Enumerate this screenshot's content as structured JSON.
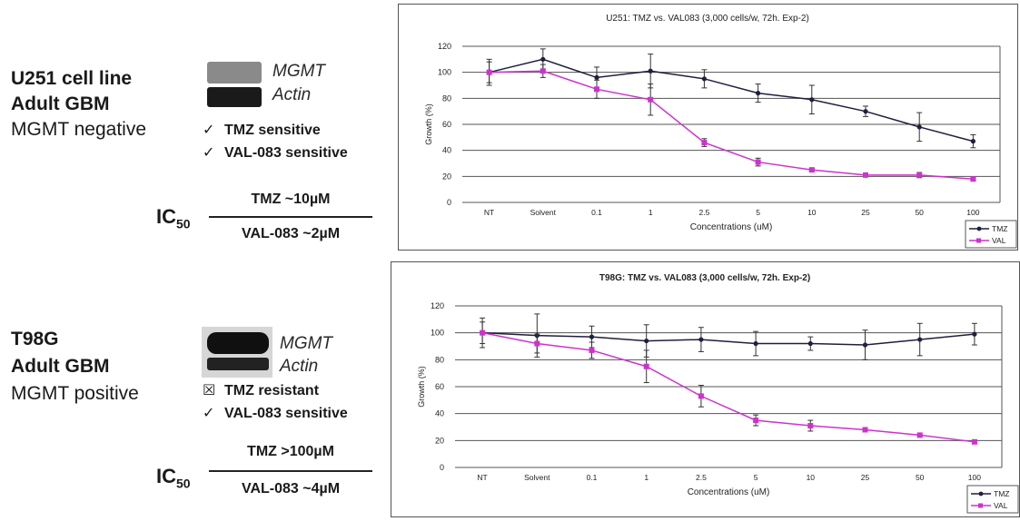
{
  "panels": [
    {
      "cell_line": "U251 cell line",
      "type": "Adult GBM",
      "mgmt_status": "MGMT negative",
      "blot_labels": [
        "MGMT",
        "Actin"
      ],
      "sensitivity": [
        {
          "mark": "✓",
          "text": "TMZ sensitive"
        },
        {
          "mark": "✓",
          "text": "VAL-083 sensitive"
        }
      ],
      "ic50_label": "IC",
      "ic50_sub": "50",
      "ic50_top": "TMZ ~10µM",
      "ic50_bottom": "VAL-083 ~2µM"
    },
    {
      "cell_line": "T98G",
      "type": "Adult GBM",
      "mgmt_status": "MGMT positive",
      "blot_labels": [
        "MGMT",
        "Actin"
      ],
      "sensitivity": [
        {
          "mark": "☒",
          "text": "TMZ resistant"
        },
        {
          "mark": "✓",
          "text": "VAL-083 sensitive"
        }
      ],
      "ic50_label": "IC",
      "ic50_sub": "50",
      "ic50_top": "TMZ >100µM",
      "ic50_bottom": "VAL-083 ~4µM"
    }
  ],
  "colors": {
    "tmz": "#1f1f3f",
    "val": "#cc33cc",
    "grid": "#555555",
    "error": "#333333"
  },
  "chart_data": [
    {
      "type": "line",
      "title": "U251: TMZ vs. VAL083 (3,000 cells/w, 72h. Exp-2)",
      "xlabel": "Concentrations (uM)",
      "ylabel": "Growth (%)",
      "categories": [
        "NT",
        "Solvent",
        "0.1",
        "1",
        "2.5",
        "5",
        "10",
        "25",
        "50",
        "100"
      ],
      "ylim": [
        0,
        120
      ],
      "yticks": [
        0,
        20,
        40,
        60,
        80,
        100,
        120
      ],
      "grid": true,
      "legend_position": "bottom-right",
      "series": [
        {
          "name": "TMZ",
          "values": [
            100,
            110,
            96,
            101,
            95,
            84,
            79,
            70,
            58,
            47
          ],
          "errors": [
            10,
            8,
            8,
            13,
            7,
            7,
            11,
            4,
            11,
            5
          ]
        },
        {
          "name": "VAL",
          "values": [
            100,
            101,
            87,
            79,
            46,
            31,
            25,
            21,
            21,
            18
          ],
          "errors": [
            8,
            5,
            7,
            12,
            3,
            3,
            1,
            1,
            2,
            1
          ]
        }
      ]
    },
    {
      "type": "line",
      "title": "T98G: TMZ vs. VAL083 (3,000 cells/w, 72h. Exp-2)",
      "xlabel": "Concentrations (uM)",
      "ylabel": "Growth (%)",
      "categories": [
        "NT",
        "Solvent",
        "0.1",
        "1",
        "2.5",
        "5",
        "10",
        "25",
        "50",
        "100"
      ],
      "ylim": [
        0,
        120
      ],
      "yticks": [
        0,
        20,
        40,
        60,
        80,
        100,
        120
      ],
      "grid": true,
      "legend_position": "bottom-right",
      "series": [
        {
          "name": "TMZ",
          "values": [
            100,
            98,
            97,
            94,
            95,
            92,
            92,
            91,
            95,
            99
          ],
          "errors": [
            11,
            16,
            8,
            12,
            9,
            9,
            5,
            11,
            12,
            8
          ]
        },
        {
          "name": "VAL",
          "values": [
            100,
            92,
            87,
            75,
            53,
            35,
            31,
            28,
            24,
            19
          ],
          "errors": [
            8,
            7,
            6,
            12,
            8,
            4,
            4,
            1,
            1,
            1
          ]
        }
      ]
    }
  ]
}
